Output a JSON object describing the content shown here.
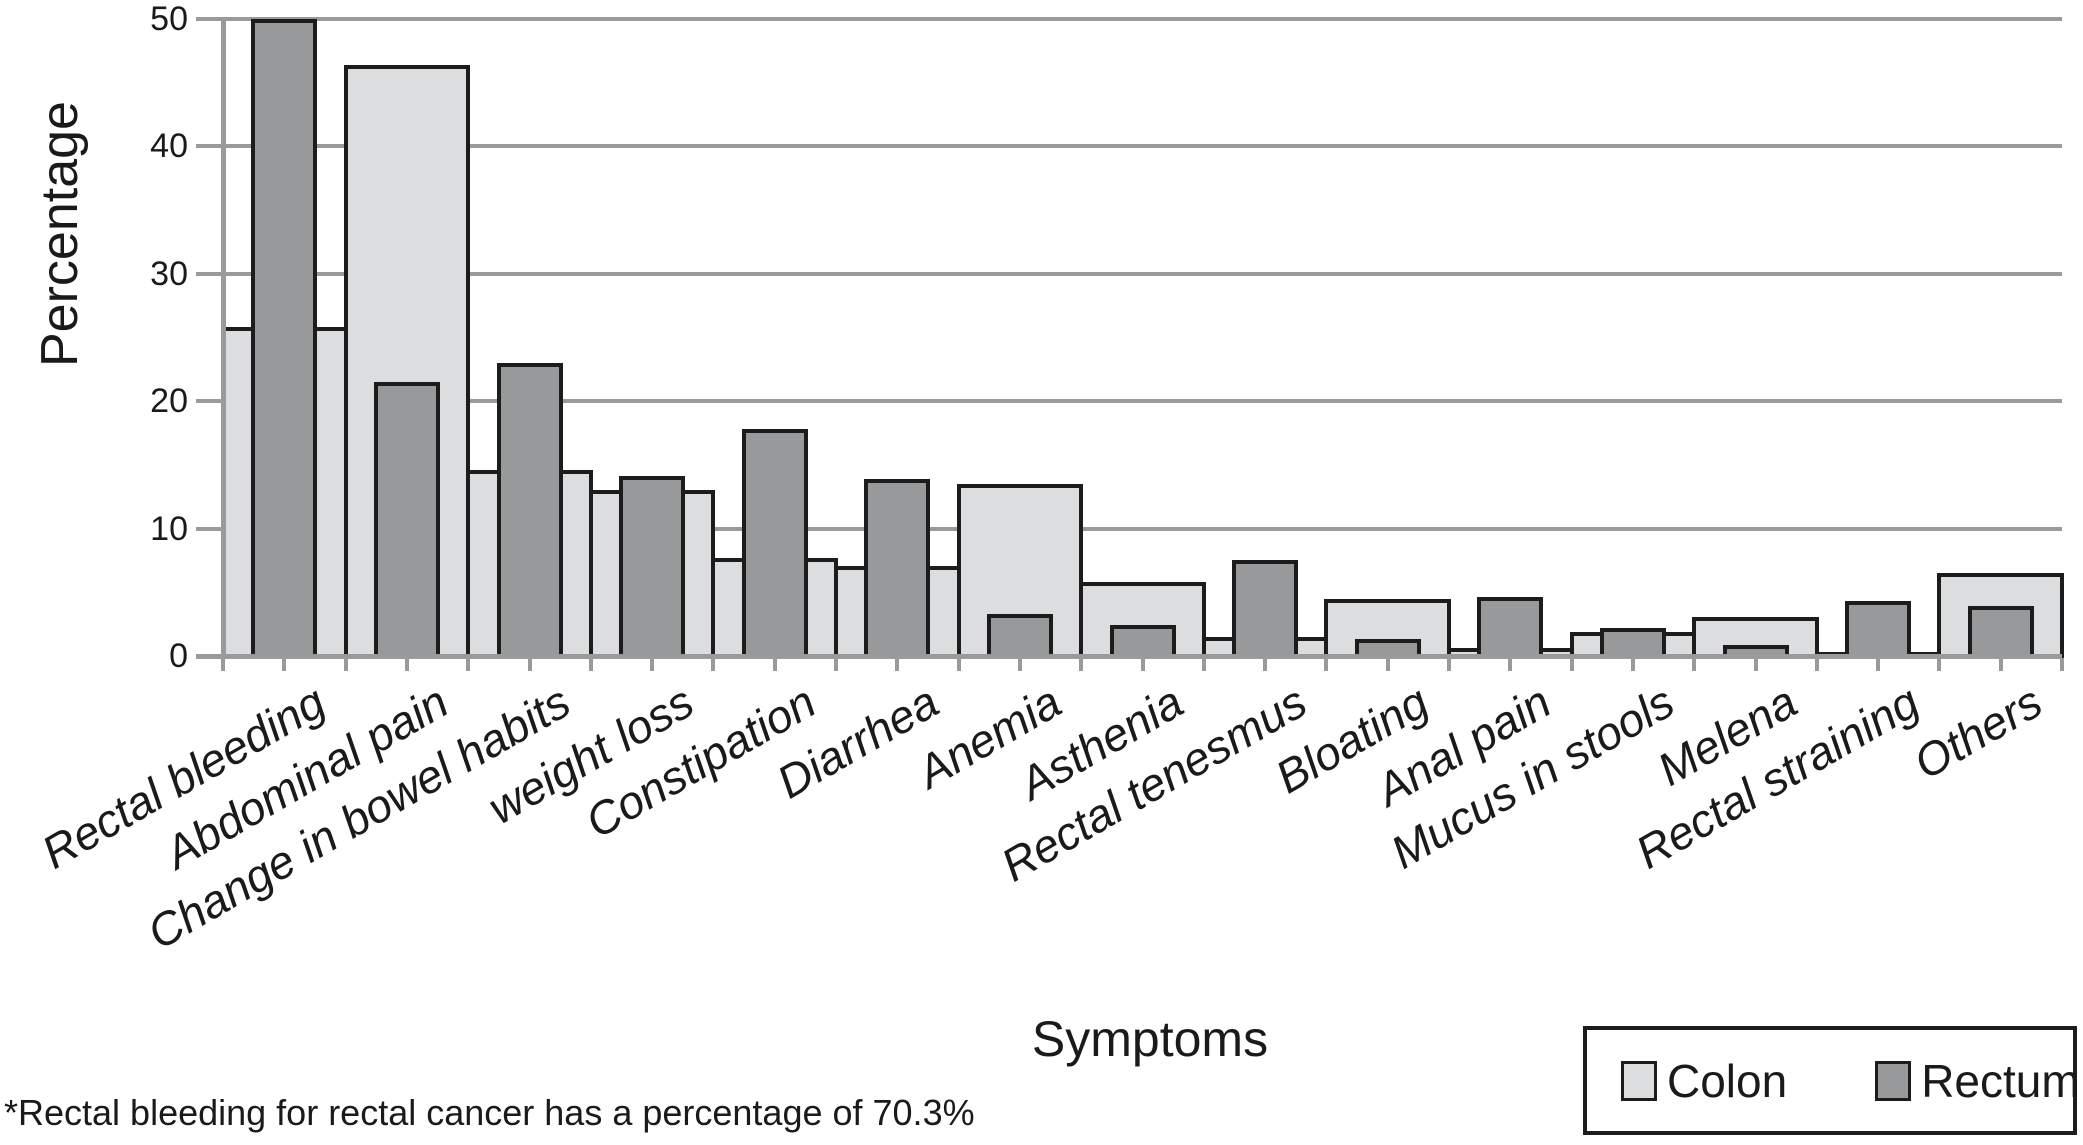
{
  "chart_data": {
    "type": "bar",
    "title": "",
    "xlabel": "Symptoms",
    "ylabel": "Percentage",
    "ylim": [
      0,
      50
    ],
    "ytick_step": 10,
    "ytick_labels": [
      "0",
      "10",
      "20",
      "30",
      "40",
      "50"
    ],
    "grid": true,
    "legend_position": "bottom-right",
    "categories": [
      "Rectal bleeding",
      "Abdominal pain",
      "Change in bowel habits",
      "weight loss",
      "Constipation",
      "Diarrhea",
      "Anemia",
      "Asthenia",
      "Rectal tenesmus",
      "Bloating",
      "Anal pain",
      "Mucus in stools",
      "Melena",
      "Rectal straining",
      "Others"
    ],
    "series": [
      {
        "name": "Colon",
        "color": "#dcddde",
        "values": [
          25.8,
          46.4,
          14.6,
          13.0,
          7.7,
          7.1,
          13.5,
          5.8,
          1.5,
          4.5,
          0.6,
          1.9,
          3.1,
          0.3,
          6.5
        ]
      },
      {
        "name": "Rectum",
        "color": "#97999b",
        "values": [
          50.0,
          21.5,
          23.0,
          14.1,
          17.8,
          13.9,
          3.3,
          2.4,
          7.5,
          1.3,
          4.6,
          2.2,
          0.9,
          4.3,
          3.9
        ]
      }
    ],
    "style": {
      "outline_color": "#1c1c1c",
      "grid_color": "#9a9a9a",
      "bar_layout": "overlapped: narrow Rectum bar drawn in front of full-width Colon bar"
    },
    "footnote": "*Rectal bleeding for rectal cancer has a percentage of 70.3%",
    "clipping_note": "Rectum value for Rectal bleeding is drawn clipped at the 50% axis maximum; true value is 70.3% per footnote"
  }
}
